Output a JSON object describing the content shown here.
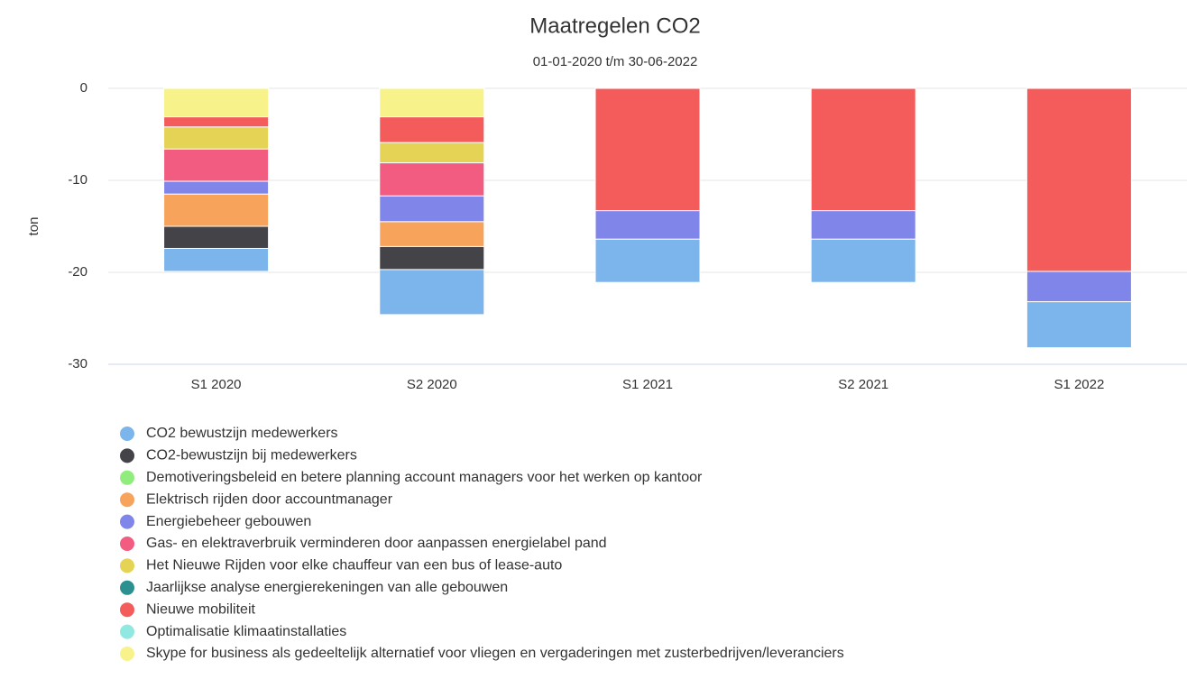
{
  "chart_data": {
    "type": "stacked_bar",
    "title": "Maatregelen CO2",
    "subtitle": "01-01-2020 t/m 30-06-2022",
    "y_label": "ton",
    "categories": [
      "S1 2020",
      "S2 2020",
      "S1 2021",
      "S2 2021",
      "S1 2022"
    ],
    "ylim": [
      -30,
      0
    ],
    "yticks": [
      0,
      -10,
      -20,
      -30
    ],
    "grid": true,
    "series": [
      {
        "name": "CO2 bewustzijn medewerkers",
        "color": "#7cb5ec",
        "values": [
          -2.5,
          -4.9,
          -4.7,
          -4.7,
          -5.0
        ]
      },
      {
        "name": "CO2-bewustzijn bij medewerkers",
        "color": "#434348",
        "values": [
          -2.4,
          -2.5,
          null,
          null,
          null
        ]
      },
      {
        "name": "Demotiveringsbeleid en betere planning account managers voor het werken op kantoor",
        "color": "#90ed7d",
        "values": [
          null,
          null,
          null,
          null,
          null
        ]
      },
      {
        "name": "Elektrisch rijden door accountmanager",
        "color": "#f7a35c",
        "values": [
          -3.5,
          -2.7,
          null,
          null,
          null
        ]
      },
      {
        "name": "Energiebeheer gebouwen",
        "color": "#8085e9",
        "values": [
          -1.4,
          -2.8,
          -3.1,
          -3.1,
          -3.3
        ]
      },
      {
        "name": "Gas- en elektraverbruik verminderen door aanpassen energielabel pand",
        "color": "#f15c80",
        "values": [
          -3.5,
          -3.6,
          null,
          null,
          null
        ]
      },
      {
        "name": "Het Nieuwe Rijden voor elke chauffeur van een bus of lease-auto",
        "color": "#e4d354",
        "values": [
          -2.4,
          -2.2,
          null,
          null,
          null
        ]
      },
      {
        "name": "Jaarlijkse analyse energierekeningen van alle gebouwen",
        "color": "#2b908f",
        "values": [
          null,
          null,
          null,
          null,
          null
        ]
      },
      {
        "name": "Nieuwe mobiliteit",
        "color": "#f45b5b",
        "values": [
          -1.1,
          -2.8,
          -13.3,
          -13.3,
          -19.9
        ]
      },
      {
        "name": "Optimalisatie klimaatinstallaties",
        "color": "#91e8e1",
        "values": [
          null,
          null,
          null,
          null,
          null
        ]
      },
      {
        "name": "Skype for business als gedeeltelijk alternatief voor vliegen en vergaderingen met zusterbedrijven/leveranciers",
        "color": "#f7f38a",
        "values": [
          -3.1,
          -3.1,
          null,
          null,
          null
        ]
      }
    ]
  }
}
